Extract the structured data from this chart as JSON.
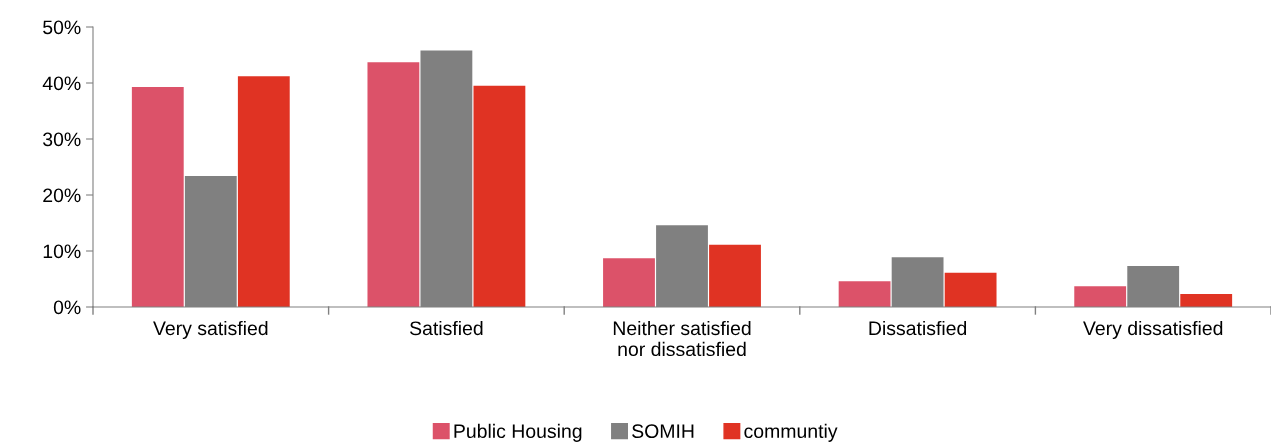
{
  "chart_data": {
    "type": "bar",
    "categories": [
      "Very satisfied",
      "Satisfied",
      "Neither satisfied\nnor dissatisfied",
      "Dissatisfied",
      "Very dissatisfied"
    ],
    "series": [
      {
        "name": "Public Housing",
        "color": "#dc5269",
        "values": [
          39.3,
          43.7,
          8.7,
          4.6,
          3.7
        ]
      },
      {
        "name": "SOMIH",
        "color": "#808080",
        "values": [
          23.4,
          45.8,
          14.6,
          8.9,
          7.3
        ]
      },
      {
        "name": "communtiy",
        "color": "#e03323",
        "values": [
          41.2,
          39.5,
          11.1,
          6.1,
          2.3
        ]
      }
    ],
    "ylim": [
      0,
      50
    ],
    "yticks": [
      {
        "value": 0,
        "label": "0%"
      },
      {
        "value": 10,
        "label": "10%"
      },
      {
        "value": 20,
        "label": "20%"
      },
      {
        "value": 30,
        "label": "30%"
      },
      {
        "value": 40,
        "label": "40%"
      },
      {
        "value": 50,
        "label": "50%"
      }
    ],
    "grid": false,
    "legend": "bottom"
  }
}
